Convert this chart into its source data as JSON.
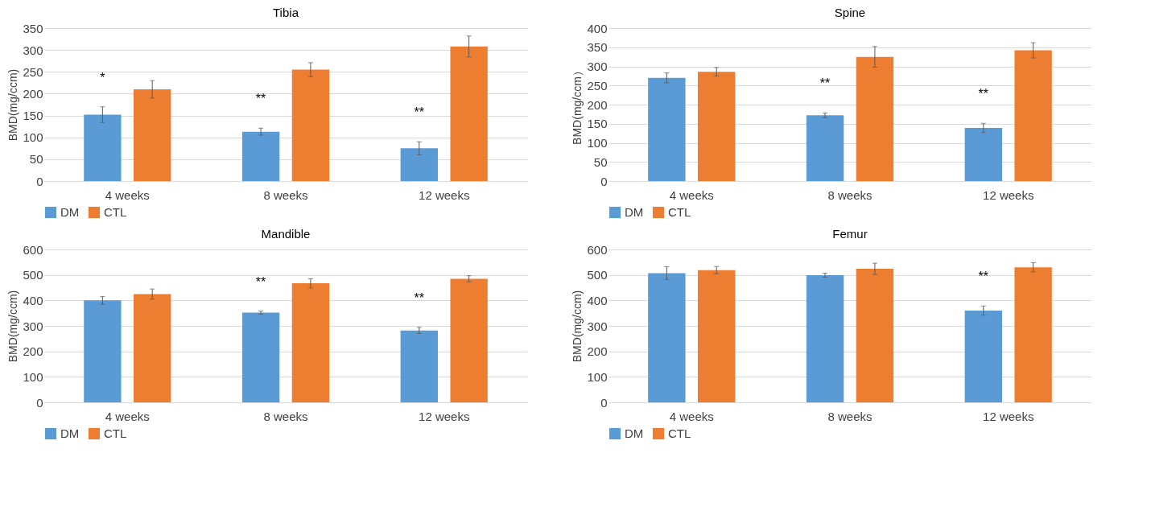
{
  "chart_data": [
    {
      "type": "bar",
      "title": "Tibia",
      "ylabel": "BMD(mg/ccm)",
      "categories": [
        "4 weeks",
        "8 weeks",
        "12 weeks"
      ],
      "series": [
        {
          "name": "DM",
          "color": "#5b9bd5",
          "values": [
            152,
            113,
            75
          ],
          "errors": [
            18,
            8,
            15
          ]
        },
        {
          "name": "CTL",
          "color": "#ed7d31",
          "values": [
            210,
            255,
            308
          ],
          "errors": [
            20,
            16,
            24
          ]
        }
      ],
      "ylim": [
        0,
        350
      ],
      "yticks": [
        0,
        50,
        100,
        150,
        200,
        250,
        300,
        350
      ],
      "grid": "y",
      "legend": "bottom",
      "annotations": [
        "*",
        "**",
        "**"
      ]
    },
    {
      "type": "bar",
      "title": "Spine",
      "ylabel": "BMD(mg/ccm）",
      "categories": [
        "4 weeks",
        "8 weeks",
        "12 weeks"
      ],
      "series": [
        {
          "name": "DM",
          "color": "#5b9bd5",
          "values": [
            270,
            172,
            139
          ],
          "errors": [
            13,
            6,
            12
          ]
        },
        {
          "name": "CTL",
          "color": "#ed7d31",
          "values": [
            286,
            325,
            342
          ],
          "errors": [
            11,
            27,
            20
          ]
        }
      ],
      "ylim": [
        0,
        400
      ],
      "yticks": [
        0,
        50,
        100,
        150,
        200,
        250,
        300,
        350,
        400
      ],
      "grid": "y",
      "legend": "bottom",
      "annotations": [
        "**",
        "**"
      ]
    },
    {
      "type": "bar",
      "title": "Mandible",
      "ylabel": "BMD(mg/ccm)",
      "categories": [
        "4 weeks",
        "8 weeks",
        "12 weeks"
      ],
      "series": [
        {
          "name": "DM",
          "color": "#5b9bd5",
          "values": [
            400,
            352,
            282
          ],
          "errors": [
            15,
            6,
            12
          ]
        },
        {
          "name": "CTL",
          "color": "#ed7d31",
          "values": [
            425,
            467,
            485
          ],
          "errors": [
            20,
            18,
            12
          ]
        }
      ],
      "ylim": [
        0,
        600
      ],
      "yticks": [
        0,
        100,
        200,
        300,
        400,
        500,
        600
      ],
      "grid": "y",
      "legend": "bottom",
      "annotations": [
        "**",
        "**"
      ]
    },
    {
      "type": "bar",
      "title": "Femur",
      "ylabel": "BMD(mg/ccm)",
      "categories": [
        "4 weeks",
        "8 weeks",
        "12 weeks"
      ],
      "series": [
        {
          "name": "DM",
          "color": "#5b9bd5",
          "values": [
            507,
            499,
            360
          ],
          "errors": [
            25,
            8,
            18
          ]
        },
        {
          "name": "CTL",
          "color": "#ed7d31",
          "values": [
            519,
            524,
            530
          ],
          "errors": [
            14,
            22,
            18
          ]
        }
      ],
      "ylim": [
        0,
        600
      ],
      "yticks": [
        0,
        100,
        200,
        300,
        400,
        500,
        600
      ],
      "grid": "y",
      "legend": "bottom",
      "annotations": [
        "**"
      ]
    }
  ]
}
